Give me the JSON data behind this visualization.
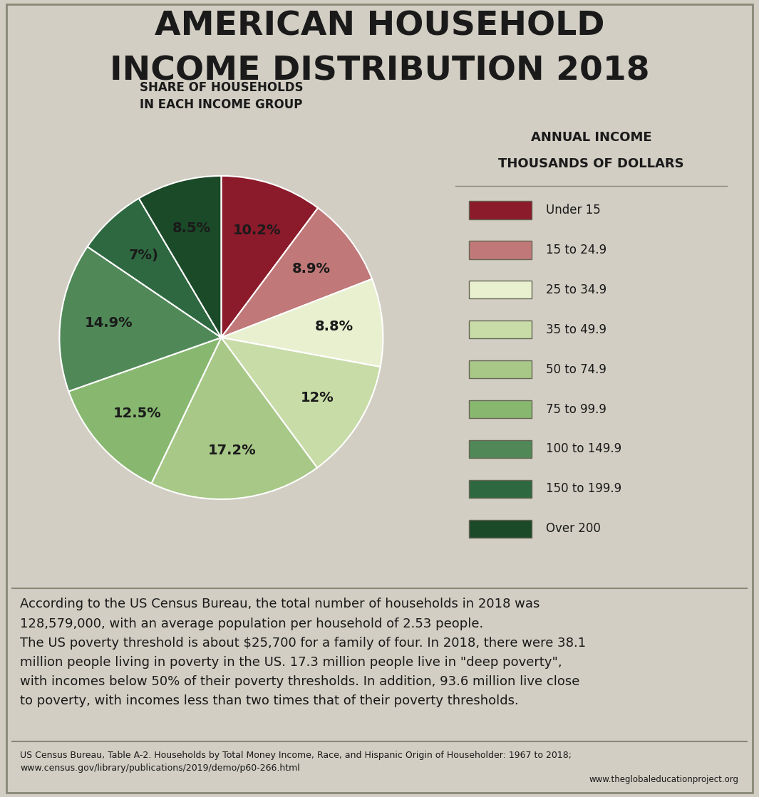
{
  "title_line1": "AMERICAN HOUSEHOLD",
  "title_line2": "INCOME DISTRIBUTION 2018",
  "pie_subtitle": "SHARE OF HOUSEHOLDS\nIN EACH INCOME GROUP",
  "legend_title_line1": "ANNUAL INCOME",
  "legend_title_line2": "THOUSANDS OF DOLLARS",
  "slices": [
    10.2,
    8.9,
    8.8,
    12.0,
    17.2,
    12.5,
    14.9,
    7.0,
    8.5
  ],
  "labels": [
    "10.2%",
    "8.9%",
    "8.8%",
    "12%",
    "17.2%",
    "12.5%",
    "14.9%",
    "7%)",
    "8.5%"
  ],
  "colors": [
    "#8B1A2A",
    "#C07878",
    "#E8F0D0",
    "#C8DCA8",
    "#A8C888",
    "#88B870",
    "#508858",
    "#2E6840",
    "#1B4A28"
  ],
  "legend_labels": [
    "Under 15",
    "15 to 24.9",
    "25 to 34.9",
    "35 to 49.9",
    "50 to 74.9",
    "75 to 99.9",
    "100 to 149.9",
    "150 to 199.9",
    "Over 200"
  ],
  "legend_colors": [
    "#8B1A2A",
    "#C07878",
    "#E8F0D0",
    "#C8DCA8",
    "#A8C888",
    "#88B870",
    "#508858",
    "#2E6840",
    "#1B4A28"
  ],
  "body_text": "According to the US Census Bureau, the total number of households in 2018 was\n128,579,000, with an average population per household of 2.53 people.\nThe US poverty threshold is about $25,700 for a family of four. In 2018, there were 38.1\nmillion people living in poverty in the US. 17.3 million people live in \"deep poverty\",\nwith incomes below 50% of their poverty thresholds. In addition, 93.6 million live close\nto poverty, with incomes less than two times that of their poverty thresholds.",
  "source_text": "US Census Bureau, Table A-2. Households by Total Money Income, Race, and Hispanic Origin of Householder: 1967 to 2018;\nwww.census.gov/library/publications/2019/demo/p60-266.html",
  "website_text": "www.theglobaleducationproject.org",
  "bg_color": "#D2CEC3",
  "legend_bg_color": "#EAE5D8",
  "title_color": "#1A1A1A",
  "text_color": "#1A1A1A"
}
